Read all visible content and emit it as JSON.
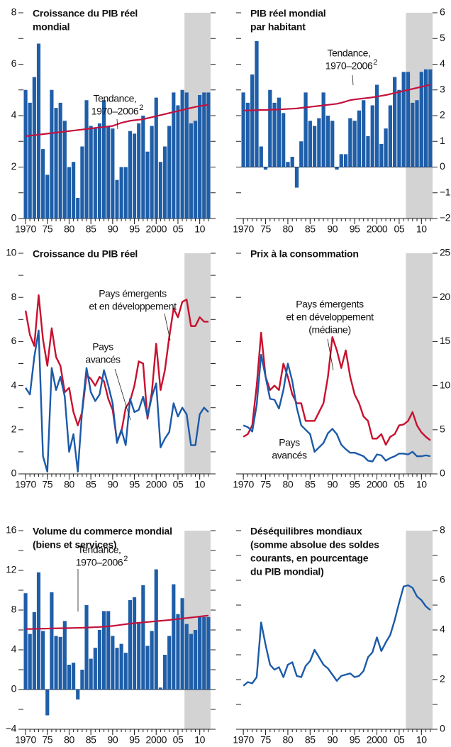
{
  "chart_data": [
    {
      "type": "bar",
      "title": [
        "Croissance du PIB réel",
        "mondial"
      ],
      "x": [
        1970,
        1971,
        1972,
        1973,
        1974,
        1975,
        1976,
        1977,
        1978,
        1979,
        1980,
        1981,
        1982,
        1983,
        1984,
        1985,
        1986,
        1987,
        1988,
        1989,
        1990,
        1991,
        1992,
        1993,
        1994,
        1995,
        1996,
        1997,
        1998,
        1999,
        2000,
        2001,
        2002,
        2003,
        2004,
        2005,
        2006,
        2007,
        2008,
        2009,
        2010,
        2011,
        2012
      ],
      "values": [
        5.0,
        4.5,
        5.5,
        6.8,
        2.7,
        1.7,
        5.0,
        4.3,
        4.5,
        3.8,
        2.0,
        2.2,
        0.8,
        2.8,
        4.6,
        3.6,
        3.5,
        3.7,
        4.6,
        3.6,
        3.5,
        1.5,
        2.0,
        2.0,
        3.4,
        3.3,
        3.7,
        4.0,
        2.6,
        3.6,
        4.7,
        2.2,
        2.8,
        3.6,
        4.9,
        4.4,
        5.0,
        4.9,
        3.7,
        3.8,
        4.8,
        4.9,
        4.9
      ],
      "color": "#1f5ea8",
      "trend": {
        "label": [
          "Tendance,",
          "1970–2006"
        ],
        "sup": "2",
        "color": "#c3123d",
        "values": [
          3.2,
          3.22,
          3.24,
          3.26,
          3.28,
          3.3,
          3.32,
          3.34,
          3.36,
          3.38,
          3.4,
          3.42,
          3.44,
          3.46,
          3.48,
          3.5,
          3.52,
          3.54,
          3.56,
          3.58,
          3.6,
          3.66,
          3.72,
          3.76,
          3.8,
          3.82,
          3.84,
          3.86,
          3.9,
          3.94,
          3.98,
          4.02,
          4.06,
          4.1,
          4.14,
          4.18,
          4.22,
          4.26,
          4.3,
          4.34,
          4.37,
          4.4,
          4.42
        ]
      },
      "xlim": [
        1969.5,
        2012.5
      ],
      "xticks": [
        1970,
        {
          "value": 1975,
          "label": "75"
        },
        {
          "value": 1980,
          "label": "80"
        },
        {
          "value": 1985,
          "label": "85"
        },
        {
          "value": 1990,
          "label": "90"
        },
        {
          "value": 1995,
          "label": "95"
        },
        2000,
        {
          "value": 2005,
          "label": "05"
        },
        {
          "value": 2010,
          "label": "10"
        }
      ],
      "ylim": [
        0,
        8
      ],
      "yticks": [
        0,
        2,
        4,
        6,
        8
      ],
      "yminor": [
        1,
        3,
        5,
        7
      ],
      "yaxis_side": "left",
      "shade": [
        2006.5,
        2012.5
      ],
      "shade_color": "#d3d3d3"
    },
    {
      "type": "bar",
      "title": [
        "PIB réel mondial",
        "par habitant"
      ],
      "x": [
        1970,
        1971,
        1972,
        1973,
        1974,
        1975,
        1976,
        1977,
        1978,
        1979,
        1980,
        1981,
        1982,
        1983,
        1984,
        1985,
        1986,
        1987,
        1988,
        1989,
        1990,
        1991,
        1992,
        1993,
        1994,
        1995,
        1996,
        1997,
        1998,
        1999,
        2000,
        2001,
        2002,
        2003,
        2004,
        2005,
        2006,
        2007,
        2008,
        2009,
        2010,
        2011,
        2012
      ],
      "values": [
        2.9,
        2.5,
        3.6,
        4.9,
        0.8,
        -0.1,
        3.0,
        2.5,
        2.7,
        2.1,
        0.2,
        0.4,
        -0.8,
        1.0,
        2.9,
        1.8,
        1.6,
        1.9,
        2.9,
        2.0,
        1.8,
        -0.1,
        0.5,
        0.5,
        1.9,
        1.8,
        2.2,
        2.6,
        1.2,
        2.4,
        3.2,
        0.9,
        1.5,
        2.4,
        3.5,
        3.0,
        3.7,
        3.7,
        2.5,
        2.6,
        3.7,
        3.8,
        3.8
      ],
      "color": "#1f5ea8",
      "trend": {
        "label": [
          "Tendance,",
          "1970–2006"
        ],
        "sup": "2",
        "color": "#c3123d",
        "values": [
          2.2,
          2.2,
          2.21,
          2.21,
          2.22,
          2.22,
          2.23,
          2.23,
          2.24,
          2.25,
          2.26,
          2.27,
          2.28,
          2.3,
          2.32,
          2.34,
          2.36,
          2.38,
          2.4,
          2.42,
          2.44,
          2.46,
          2.5,
          2.55,
          2.6,
          2.63,
          2.65,
          2.67,
          2.69,
          2.71,
          2.74,
          2.77,
          2.8,
          2.84,
          2.88,
          2.92,
          2.96,
          3.0,
          3.04,
          3.08,
          3.12,
          3.16,
          3.2
        ]
      },
      "xlim": [
        1969.5,
        2012.5
      ],
      "xticks": [
        1970,
        {
          "value": 1975,
          "label": "75"
        },
        {
          "value": 1980,
          "label": "80"
        },
        {
          "value": 1985,
          "label": "85"
        },
        {
          "value": 1990,
          "label": "90"
        },
        {
          "value": 1995,
          "label": "95"
        },
        2000,
        {
          "value": 2005,
          "label": "05"
        },
        {
          "value": 2010,
          "label": "10"
        }
      ],
      "ylim": [
        -2,
        6
      ],
      "yticks": [
        {
          "value": -2,
          "label": "−2"
        },
        {
          "value": -1,
          "label": "−1"
        },
        0,
        1,
        2,
        3,
        4,
        5,
        6
      ],
      "yminor": [],
      "yaxis_side": "right",
      "shade": [
        2006.5,
        2012.5
      ],
      "shade_color": "#d3d3d3"
    },
    {
      "type": "line",
      "title": [
        "Croissance du PIB réel"
      ],
      "x": [
        1970,
        1971,
        1972,
        1973,
        1974,
        1975,
        1976,
        1977,
        1978,
        1979,
        1980,
        1981,
        1982,
        1983,
        1984,
        1985,
        1986,
        1987,
        1988,
        1989,
        1990,
        1991,
        1992,
        1993,
        1994,
        1995,
        1996,
        1997,
        1998,
        1999,
        2000,
        2001,
        2002,
        2003,
        2004,
        2005,
        2006,
        2007,
        2008,
        2009,
        2010,
        2011,
        2012
      ],
      "series": [
        {
          "name": [
            "Pays émergents",
            "et en développement"
          ],
          "color": "#c8102e",
          "values": [
            7.4,
            6.3,
            5.8,
            8.1,
            6.1,
            4.9,
            6.6,
            5.3,
            4.9,
            3.7,
            3.9,
            2.8,
            2.2,
            2.8,
            4.5,
            4.3,
            4.0,
            4.4,
            4.2,
            3.4,
            2.9,
            1.5,
            1.9,
            3.0,
            3.3,
            4.0,
            5.1,
            5.0,
            2.5,
            3.7,
            5.9,
            3.8,
            4.7,
            6.2,
            7.5,
            7.1,
            7.8,
            7.9,
            6.7,
            6.7,
            7.1,
            6.9,
            6.9
          ]
        },
        {
          "name": [
            "Pays",
            "avancés"
          ],
          "color": "#1c5aa8",
          "values": [
            3.9,
            3.6,
            5.3,
            6.5,
            0.8,
            0.1,
            4.8,
            3.8,
            4.4,
            3.5,
            1.0,
            1.8,
            0.1,
            2.9,
            4.8,
            3.7,
            3.3,
            3.6,
            4.7,
            4.0,
            3.2,
            1.4,
            2.0,
            1.3,
            3.4,
            2.8,
            2.9,
            3.5,
            2.6,
            3.5,
            4.1,
            1.2,
            1.6,
            1.9,
            3.2,
            2.6,
            3.0,
            2.7,
            1.3,
            1.3,
            2.7,
            3.0,
            2.8
          ]
        }
      ],
      "xlim": [
        1969.5,
        2012.5
      ],
      "xticks": [
        1970,
        {
          "value": 1975,
          "label": "75"
        },
        {
          "value": 1980,
          "label": "80"
        },
        {
          "value": 1985,
          "label": "85"
        },
        {
          "value": 1990,
          "label": "90"
        },
        {
          "value": 1995,
          "label": "95"
        },
        2000,
        {
          "value": 2005,
          "label": "05"
        },
        {
          "value": 2010,
          "label": "10"
        }
      ],
      "ylim": [
        0,
        10
      ],
      "yticks": [
        0,
        2,
        4,
        6,
        8,
        10
      ],
      "yminor": [
        1,
        3,
        5,
        7,
        9
      ],
      "yaxis_side": "left",
      "shade": [
        2006.5,
        2012.5
      ],
      "shade_color": "#d3d3d3"
    },
    {
      "type": "line",
      "title": [
        "Prix à la consommation"
      ],
      "x": [
        1970,
        1971,
        1972,
        1973,
        1974,
        1975,
        1976,
        1977,
        1978,
        1979,
        1980,
        1981,
        1982,
        1983,
        1984,
        1985,
        1986,
        1987,
        1988,
        1989,
        1990,
        1991,
        1992,
        1993,
        1994,
        1995,
        1996,
        1997,
        1998,
        1999,
        2000,
        2001,
        2002,
        2003,
        2004,
        2005,
        2006,
        2007,
        2008,
        2009,
        2010,
        2011,
        2012
      ],
      "series": [
        {
          "name": [
            "Pays émergents",
            "et en développement",
            "(médiane)"
          ],
          "color": "#c8102e",
          "values": [
            4.2,
            4.5,
            5.5,
            10,
            16,
            11,
            9.5,
            10,
            9.5,
            12.5,
            11,
            9,
            8,
            8,
            6,
            6,
            6,
            7,
            8,
            11,
            15.5,
            14,
            12,
            14,
            11,
            9,
            8,
            6.5,
            6,
            4,
            4,
            4.5,
            3.3,
            4.2,
            4.5,
            5.5,
            5.6,
            6,
            7,
            5.5,
            4.7,
            4.2,
            3.8
          ]
        },
        {
          "name": [
            "Pays",
            "avancés"
          ],
          "color": "#1c5aa8",
          "values": [
            5.5,
            5.3,
            4.8,
            7.8,
            13.5,
            11,
            8.5,
            8.4,
            7.4,
            9.5,
            12.5,
            10.5,
            7.5,
            5.5,
            5.0,
            4.5,
            2.5,
            3.0,
            3.5,
            4.6,
            5.1,
            4.5,
            3.3,
            2.8,
            2.4,
            2.4,
            2.2,
            2.0,
            1.5,
            1.4,
            2.2,
            2.1,
            1.5,
            1.8,
            2.0,
            2.3,
            2.3,
            2.2,
            2.5,
            2.0,
            2.0,
            2.1,
            2.0
          ]
        }
      ],
      "xlim": [
        1969.5,
        2012.5
      ],
      "xticks": [
        1970,
        {
          "value": 1975,
          "label": "75"
        },
        {
          "value": 1980,
          "label": "80"
        },
        {
          "value": 1985,
          "label": "85"
        },
        {
          "value": 1990,
          "label": "90"
        },
        {
          "value": 1995,
          "label": "95"
        },
        2000,
        {
          "value": 2005,
          "label": "05"
        },
        {
          "value": 2010,
          "label": "10"
        }
      ],
      "ylim": [
        0,
        25
      ],
      "yticks": [
        0,
        5,
        10,
        15,
        20,
        25
      ],
      "yminor": [],
      "yaxis_side": "right",
      "shade": [
        2006.5,
        2012.5
      ],
      "shade_color": "#d3d3d3"
    },
    {
      "type": "bar",
      "title": [
        "Volume du commerce mondial",
        "(biens et services)"
      ],
      "x": [
        1970,
        1971,
        1972,
        1973,
        1974,
        1975,
        1976,
        1977,
        1978,
        1979,
        1980,
        1981,
        1982,
        1983,
        1984,
        1985,
        1986,
        1987,
        1988,
        1989,
        1990,
        1991,
        1992,
        1993,
        1994,
        1995,
        1996,
        1997,
        1998,
        1999,
        2000,
        2001,
        2002,
        2003,
        2004,
        2005,
        2006,
        2007,
        2008,
        2009,
        2010,
        2011,
        2012
      ],
      "values": [
        9.7,
        5.6,
        7.8,
        11.8,
        5.9,
        -2.6,
        9.8,
        5.4,
        5.3,
        6.9,
        2.5,
        2.7,
        -1.0,
        2.0,
        8.5,
        3.1,
        4.2,
        6.0,
        7.9,
        7.9,
        5.4,
        4.2,
        4.6,
        3.7,
        9.0,
        9.3,
        6.8,
        10.5,
        4.4,
        5.9,
        12.1,
        0.2,
        3.5,
        5.4,
        10.6,
        7.6,
        9.2,
        6.6,
        5.6,
        6.0,
        7.3,
        7.3,
        7.3
      ],
      "color": "#1f5ea8",
      "trend": {
        "label": [
          "Tendance,",
          "1970–2006"
        ],
        "sup": "2",
        "color": "#c3123d",
        "values": [
          6.1,
          6.1,
          6.11,
          6.12,
          6.13,
          6.14,
          6.15,
          6.16,
          6.17,
          6.18,
          6.19,
          6.2,
          6.21,
          6.22,
          6.24,
          6.26,
          6.28,
          6.3,
          6.33,
          6.36,
          6.4,
          6.46,
          6.52,
          6.58,
          6.64,
          6.68,
          6.72,
          6.76,
          6.8,
          6.84,
          6.88,
          6.92,
          6.96,
          7.0,
          7.05,
          7.1,
          7.15,
          7.2,
          7.25,
          7.3,
          7.35,
          7.4,
          7.45
        ]
      },
      "xlim": [
        1969.5,
        2012.5
      ],
      "xticks": [
        1970,
        {
          "value": 1975,
          "label": "75"
        },
        {
          "value": 1980,
          "label": "80"
        },
        {
          "value": 1985,
          "label": "85"
        },
        {
          "value": 1990,
          "label": "90"
        },
        {
          "value": 1995,
          "label": "95"
        },
        2000,
        {
          "value": 2005,
          "label": "05"
        },
        {
          "value": 2010,
          "label": "10"
        }
      ],
      "ylim": [
        -4,
        16
      ],
      "yticks": [
        {
          "value": -4,
          "label": "−4"
        },
        0,
        4,
        8,
        12,
        16
      ],
      "yminor": [
        -2,
        2,
        6,
        10,
        14
      ],
      "yaxis_side": "left",
      "shade": [
        2006.5,
        2012.5
      ],
      "shade_color": "#d3d3d3"
    },
    {
      "type": "line",
      "title": [
        "Déséquilibres mondiaux",
        "(somme absolue des soldes",
        "courants, en pourcentage",
        "du PIB mondial)"
      ],
      "x": [
        1970,
        1971,
        1972,
        1973,
        1974,
        1975,
        1976,
        1977,
        1978,
        1979,
        1980,
        1981,
        1982,
        1983,
        1984,
        1985,
        1986,
        1987,
        1988,
        1989,
        1990,
        1991,
        1992,
        1993,
        1994,
        1995,
        1996,
        1997,
        1998,
        1999,
        2000,
        2001,
        2002,
        2003,
        2004,
        2005,
        2006,
        2007,
        2008,
        2009,
        2010,
        2011,
        2012
      ],
      "series": [
        {
          "color": "#1c5aa8",
          "values": [
            1.75,
            1.9,
            1.85,
            2.1,
            4.3,
            3.4,
            2.6,
            2.4,
            2.5,
            2.1,
            2.6,
            2.7,
            2.15,
            2.1,
            2.55,
            2.75,
            3.2,
            2.9,
            2.6,
            2.45,
            2.2,
            1.95,
            2.15,
            2.2,
            2.25,
            2.1,
            2.15,
            2.35,
            2.9,
            3.1,
            3.7,
            3.15,
            3.5,
            3.8,
            4.4,
            5.1,
            5.75,
            5.8,
            5.7,
            5.35,
            5.2,
            4.95,
            4.8
          ]
        }
      ],
      "xlim": [
        1969.5,
        2012.5
      ],
      "xticks": [
        1970,
        {
          "value": 1975,
          "label": "75"
        },
        {
          "value": 1980,
          "label": "80"
        },
        {
          "value": 1985,
          "label": "85"
        },
        {
          "value": 1990,
          "label": "90"
        },
        {
          "value": 1995,
          "label": "95"
        },
        2000,
        {
          "value": 2005,
          "label": "05"
        },
        {
          "value": 2010,
          "label": "10"
        }
      ],
      "ylim": [
        0,
        8
      ],
      "yticks": [
        0,
        2,
        4,
        6,
        8
      ],
      "yminor": [
        1,
        3,
        5,
        7
      ],
      "yaxis_side": "right",
      "shade": [
        2006.5,
        2012.5
      ],
      "shade_color": "#d3d3d3"
    }
  ]
}
